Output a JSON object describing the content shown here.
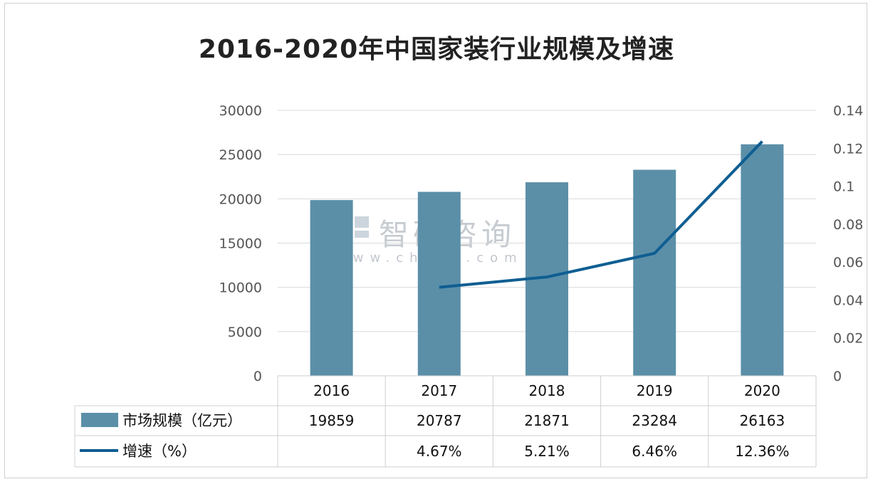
{
  "title": "2016-2020年中国家装行业规模及增速",
  "watermark": {
    "brand": "智研咨询",
    "url": "www.chyxx.com"
  },
  "chart_data": {
    "type": "bar",
    "categories": [
      "2016",
      "2017",
      "2018",
      "2019",
      "2020"
    ],
    "series": [
      {
        "name": "市场规模（亿元）",
        "type": "bar",
        "axis": "left",
        "values": [
          19859,
          20787,
          21871,
          23284,
          26163
        ],
        "labels": [
          "19859",
          "20787",
          "21871",
          "23284",
          "26163"
        ],
        "color": "#5b8fa8"
      },
      {
        "name": "增速（%）",
        "type": "line",
        "axis": "right",
        "values": [
          null,
          0.0467,
          0.0521,
          0.0646,
          0.1236
        ],
        "labels": [
          "",
          "4.67%",
          "5.21%",
          "6.46%",
          "12.36%"
        ],
        "color": "#0f5e92"
      }
    ],
    "y_left": {
      "ylim": [
        0,
        30000
      ],
      "ticks": [
        "0",
        "5000",
        "10000",
        "15000",
        "20000",
        "25000",
        "30000"
      ]
    },
    "y_right": {
      "ylim": [
        0,
        0.14
      ],
      "ticks": [
        "0",
        "0.02",
        "0.04",
        "0.06",
        "0.08",
        "0.1",
        "0.12",
        "0.14"
      ]
    },
    "grid": true,
    "legend": "data-table"
  }
}
